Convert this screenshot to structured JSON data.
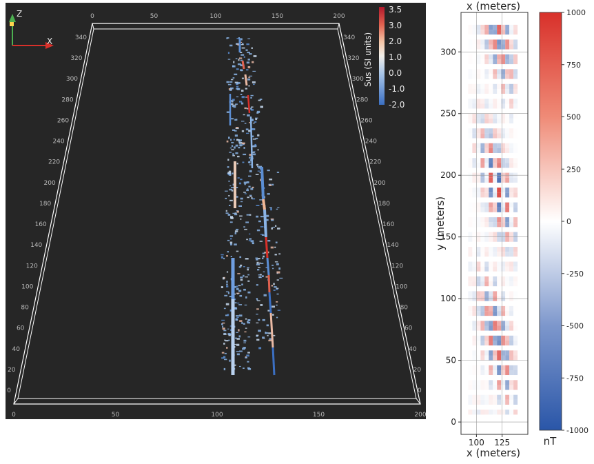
{
  "view3d": {
    "axis_triad": {
      "z_label": "Z",
      "x_label": "X"
    },
    "top_x_ticks": [
      "0",
      "50",
      "100",
      "150",
      "200"
    ],
    "bottom_x_ticks": [
      "0",
      "50",
      "100",
      "150",
      "200"
    ],
    "left_y_ticks": [
      "0",
      "20",
      "40",
      "60",
      "80",
      "100",
      "120",
      "140",
      "160",
      "180",
      "200",
      "220",
      "240",
      "260",
      "280",
      "300",
      "320",
      "340"
    ],
    "right_y_ticks": [
      "0",
      "20",
      "40",
      "60",
      "80",
      "100",
      "120",
      "140",
      "160",
      "180",
      "200",
      "220",
      "240",
      "260",
      "280",
      "300",
      "320",
      "340"
    ],
    "colorbar": {
      "label": "Sus (SI units)",
      "ticks": [
        "3.5",
        "3.0",
        "2.0",
        "1.0",
        "0.0",
        "-1.0",
        "-2.0"
      ],
      "colors": {
        "high": "#d62f26",
        "zero": "#f2efe9",
        "low": "#3b6fc2"
      }
    },
    "background": "#262626",
    "box_color": "#ffffff"
  },
  "map2d": {
    "top_label": "x (meters)",
    "xlabel": "x (meters)",
    "ylabel": "y (meters)",
    "x_ticks": [
      "100",
      "125"
    ],
    "y_ticks": [
      "0",
      "50",
      "100",
      "150",
      "200",
      "250",
      "300"
    ],
    "colorbar": {
      "unit": "nT",
      "ticks": [
        "1000",
        "750",
        "500",
        "250",
        "0",
        "-250",
        "-500",
        "-750",
        "-1000"
      ],
      "colors": {
        "high": "#d8302a",
        "zero": "#ffffff",
        "low": "#2a56a8"
      }
    }
  },
  "chart_data": {
    "type": "heatmap",
    "title": "",
    "xlabel": "x (meters)",
    "ylabel": "y (meters)",
    "xlim": [
      85,
      150
    ],
    "ylim": [
      -10,
      332
    ],
    "clim": [
      -1000,
      1000
    ],
    "colorbar_label": "nT"
  }
}
